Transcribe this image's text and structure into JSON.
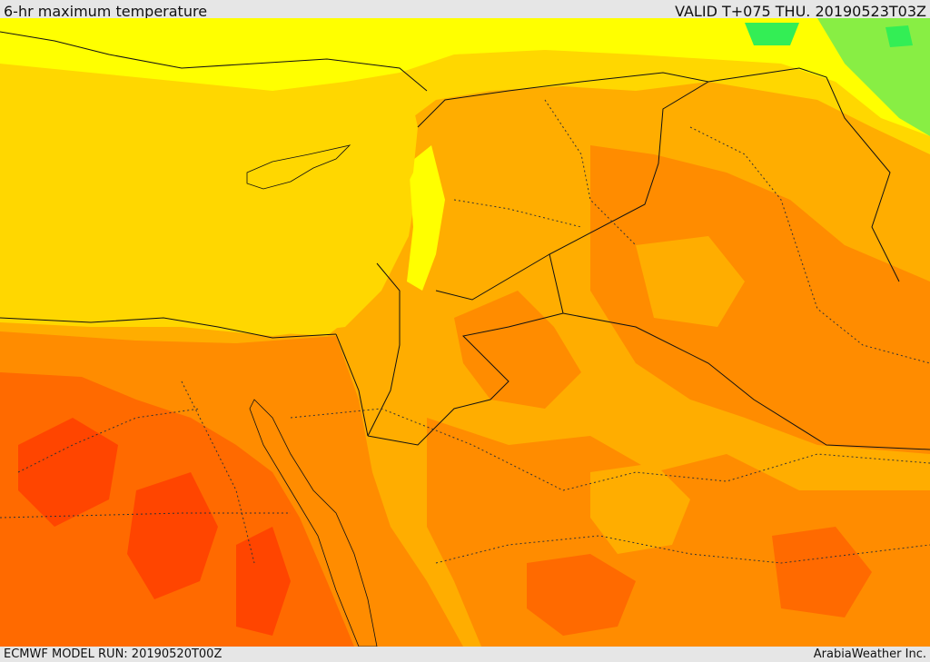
{
  "header": {
    "title": "6-hr maximum temperature",
    "valid": "VALID T+075 THU. 20190523T03Z"
  },
  "footer": {
    "model_run": "ECMWF MODEL RUN: 20190520T00Z",
    "credit": "ArabiaWeather Inc."
  },
  "colors": {
    "sea_yellow": "#ffd700",
    "light_yellow": "#ffff00",
    "green": "#44ee44",
    "light_orange": "#ffad00",
    "orange": "#ff8c00",
    "dark_orange": "#ff6a00",
    "red_orange": "#ff4500",
    "border": "#111111",
    "background": "#e6e6e6"
  }
}
